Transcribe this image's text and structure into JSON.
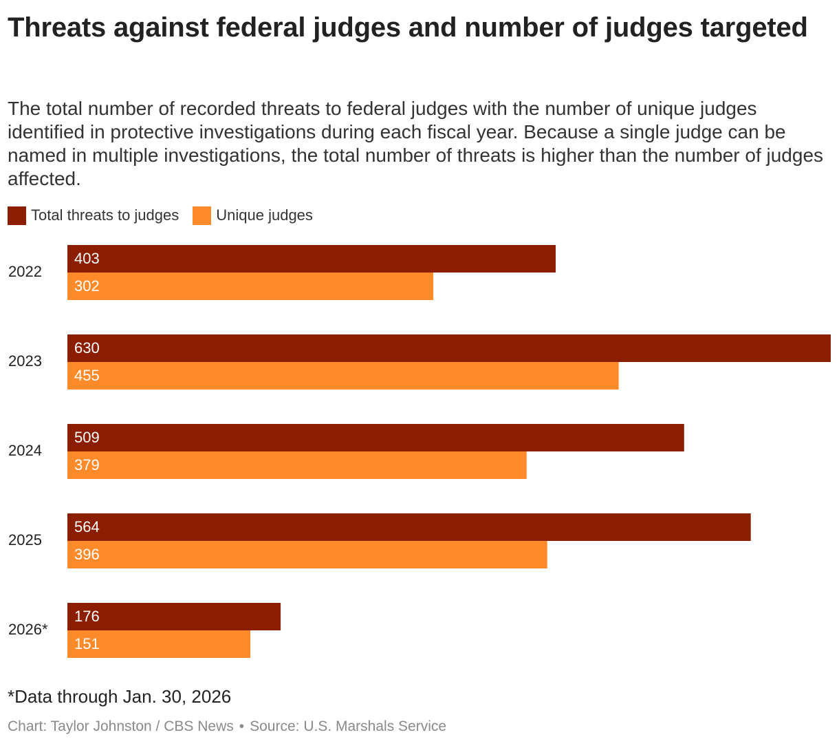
{
  "title": "Threats against federal judges and number of judges targeted",
  "subtitle": "The total number of recorded threats to federal judges with the number of unique judges identified in protective investigations during each fiscal year. Because a single judge can be named in multiple investigations, the total number of threats is higher than the number of judges affected.",
  "note": "*Data through Jan. 30, 2026",
  "footer": {
    "credit": "Chart: Taylor Johnston / CBS News",
    "separator": "•",
    "source": "Source: U.S. Marshals Service"
  },
  "colors": {
    "total_threats": "#8b1e00",
    "unique_judges": "#ff8a2a",
    "bar_label": "#ffffff"
  },
  "chart_data": {
    "type": "bar",
    "orientation": "horizontal",
    "categories": [
      "2022",
      "2023",
      "2024",
      "2025",
      "2026*"
    ],
    "series": [
      {
        "name": "Total threats to judges",
        "values": [
          403,
          630,
          509,
          564,
          176
        ]
      },
      {
        "name": "Unique judges",
        "values": [
          302,
          455,
          379,
          396,
          151
        ]
      }
    ],
    "xlim": [
      0,
      630
    ],
    "grid": false,
    "legend": "top-left",
    "data_labels": "inside-bar-start"
  }
}
